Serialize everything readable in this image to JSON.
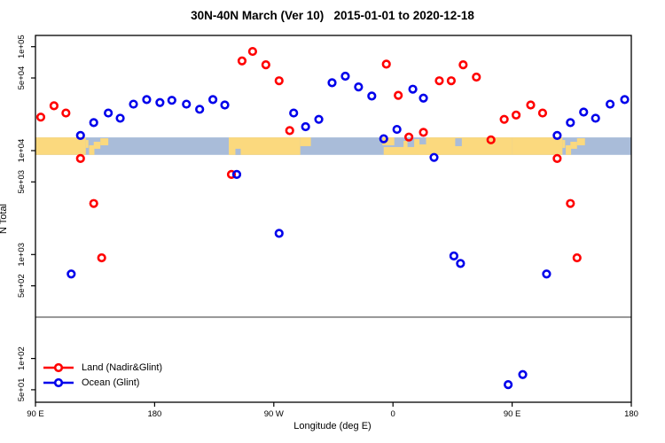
{
  "title": "30N-40N March (Ver 10)   2015-01-01 to 2020-12-18",
  "chart_data": {
    "type": "scatter",
    "title": "30N-40N March (Ver 10)   2015-01-01 to 2020-12-18",
    "xlabel": "Longitude (deg E)",
    "ylabel": "N Total",
    "x_axis": {
      "range": [
        90,
        540
      ],
      "unit": "deg E (wraps: 90E to 180 to 90W to 0 to 90E to 180)",
      "ticks": [
        {
          "pos": 90,
          "label": "90 E"
        },
        {
          "pos": 180,
          "label": "180"
        },
        {
          "pos": 270,
          "label": "90 W"
        },
        {
          "pos": 360,
          "label": "0"
        },
        {
          "pos": 450,
          "label": "90 E"
        },
        {
          "pos": 540,
          "label": "180"
        }
      ]
    },
    "y_axis": {
      "scale": "log",
      "range": [
        32,
        160000
      ],
      "ticks": [
        {
          "value": 100000,
          "label": "1e+05"
        },
        {
          "value": 50000,
          "label": "5e+04"
        },
        {
          "value": 10000,
          "label": "1e+04"
        },
        {
          "value": 5000,
          "label": "5e+03"
        },
        {
          "value": 1000,
          "label": "1e+03"
        },
        {
          "value": 500,
          "label": "5e+02"
        },
        {
          "value": 100,
          "label": "1e+02"
        },
        {
          "value": 50,
          "label": "5e+01"
        }
      ]
    },
    "reference_line": {
      "value": 250,
      "color": "#808080"
    },
    "map_band": {
      "value_top": 13400,
      "value_bottom": 9100,
      "ocean_color": "#A9BCD9",
      "land_color": "#FBD97E",
      "segments": [
        {
          "lon0": 90,
          "lon1": 128,
          "type": "land",
          "y0": 0,
          "y1": 1
        },
        {
          "lon0": 128,
          "lon1": 130,
          "type": "land",
          "y0": 0.15,
          "y1": 0.6
        },
        {
          "lon0": 130.5,
          "lon1": 134.5,
          "type": "land",
          "y0": 0.45,
          "y1": 1
        },
        {
          "lon0": 134,
          "lon1": 139,
          "type": "land",
          "y0": 0.25,
          "y1": 0.65
        },
        {
          "lon0": 139,
          "lon1": 145,
          "type": "land",
          "y0": 0.05,
          "y1": 0.45
        },
        {
          "lon0": 236,
          "lon1": 290,
          "type": "land",
          "y0": 0,
          "y1": 1
        },
        {
          "lon0": 290,
          "lon1": 298,
          "type": "land",
          "y0": 0,
          "y1": 0.5
        },
        {
          "lon0": 241,
          "lon1": 245,
          "type": "ocean",
          "y0": 0.65,
          "y1": 1
        },
        {
          "lon0": 352,
          "lon1": 361,
          "type": "land",
          "y0": 0,
          "y1": 0.45
        },
        {
          "lon0": 353,
          "lon1": 396,
          "type": "land",
          "y0": 0.55,
          "y1": 1
        },
        {
          "lon0": 368,
          "lon1": 371,
          "type": "land",
          "y0": 0.2,
          "y1": 0.7
        },
        {
          "lon0": 376,
          "lon1": 380,
          "type": "land",
          "y0": 0.1,
          "y1": 0.6
        },
        {
          "lon0": 380,
          "lon1": 385,
          "type": "land",
          "y0": 0.4,
          "y1": 1
        },
        {
          "lon0": 385,
          "lon1": 450,
          "type": "land",
          "y0": 0,
          "y1": 1
        },
        {
          "lon0": 407,
          "lon1": 412,
          "type": "ocean",
          "y0": 0.05,
          "y1": 0.5
        },
        {
          "lon0": 450,
          "lon1": 488,
          "type": "land",
          "y0": 0,
          "y1": 1
        },
        {
          "lon0": 488,
          "lon1": 490,
          "type": "land",
          "y0": 0.15,
          "y1": 0.6
        },
        {
          "lon0": 490.5,
          "lon1": 494.5,
          "type": "land",
          "y0": 0.45,
          "y1": 1
        },
        {
          "lon0": 494,
          "lon1": 499,
          "type": "land",
          "y0": 0.25,
          "y1": 0.65
        },
        {
          "lon0": 499,
          "lon1": 505,
          "type": "land",
          "y0": 0.05,
          "y1": 0.45
        }
      ]
    },
    "series": [
      {
        "name": "Land (Nadir&Glint)",
        "color": "#FF0000",
        "points": [
          [
            94,
            21000
          ],
          [
            104,
            27000
          ],
          [
            113,
            23000
          ],
          [
            124,
            8400
          ],
          [
            134,
            3100
          ],
          [
            140,
            930
          ],
          [
            238,
            5900
          ],
          [
            246,
            73000
          ],
          [
            254,
            90000
          ],
          [
            264,
            67000
          ],
          [
            274,
            47000
          ],
          [
            282,
            15600
          ],
          [
            355,
            68000
          ],
          [
            364,
            34000
          ],
          [
            372,
            13500
          ],
          [
            383,
            15000
          ],
          [
            395,
            47000
          ],
          [
            404,
            47000
          ],
          [
            413,
            67000
          ],
          [
            423,
            51000
          ],
          [
            434,
            12700
          ],
          [
            444,
            20000
          ],
          [
            453,
            22000
          ],
          [
            464,
            27500
          ],
          [
            473,
            23000
          ],
          [
            484,
            8400
          ],
          [
            494,
            3100
          ],
          [
            499,
            930
          ]
        ]
      },
      {
        "name": "Ocean (Glint)",
        "color": "#0000EB",
        "points": [
          [
            117,
            650
          ],
          [
            124,
            14000
          ],
          [
            134,
            18600
          ],
          [
            145,
            23000
          ],
          [
            154,
            20500
          ],
          [
            164,
            28000
          ],
          [
            174,
            31000
          ],
          [
            184,
            29000
          ],
          [
            193,
            30500
          ],
          [
            204,
            28000
          ],
          [
            214,
            25000
          ],
          [
            224,
            31000
          ],
          [
            233,
            27500
          ],
          [
            242,
            5900
          ],
          [
            274,
            1600
          ],
          [
            285,
            23000
          ],
          [
            294,
            17000
          ],
          [
            304,
            20000
          ],
          [
            314,
            45000
          ],
          [
            324,
            52000
          ],
          [
            334,
            41000
          ],
          [
            344,
            33500
          ],
          [
            353,
            13000
          ],
          [
            363,
            16000
          ],
          [
            375,
            39000
          ],
          [
            383,
            32000
          ],
          [
            391,
            8600
          ],
          [
            406,
            970
          ],
          [
            411,
            820
          ],
          [
            447,
            56
          ],
          [
            458,
            70
          ],
          [
            476,
            650
          ],
          [
            484,
            14000
          ],
          [
            494,
            18600
          ],
          [
            504,
            23500
          ],
          [
            513,
            20500
          ],
          [
            524,
            28000
          ],
          [
            535,
            31000
          ]
        ]
      }
    ],
    "legend": {
      "position": "bottom-left"
    }
  }
}
